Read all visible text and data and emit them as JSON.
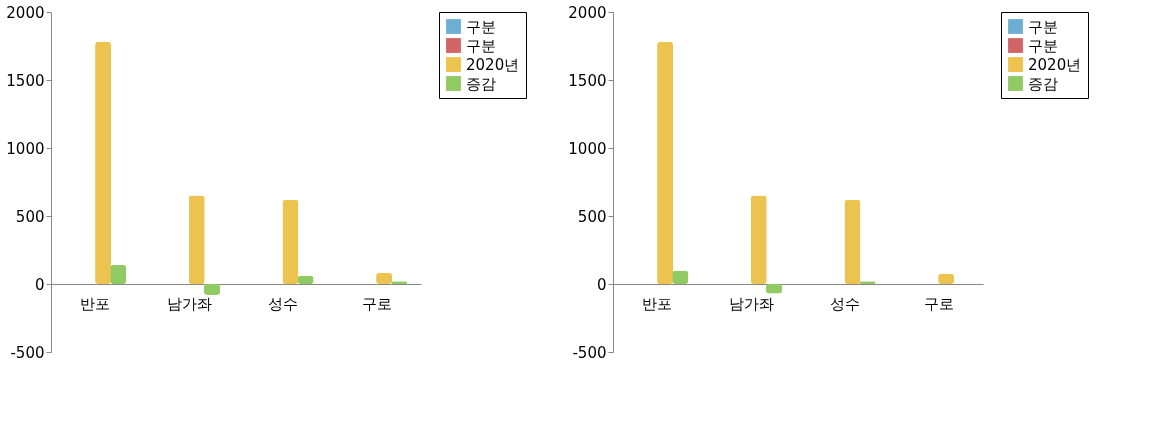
{
  "chart_data": [
    {
      "type": "bar",
      "categories": [
        "반포",
        "남가좌",
        "성수",
        "구로"
      ],
      "ylim": [
        -500,
        2000
      ],
      "yticks": [
        -500,
        0,
        500,
        1000,
        1500,
        2000
      ],
      "grid": false,
      "legend": "right",
      "series": [
        {
          "name": "구분",
          "color": "#6eaed3",
          "values": [
            null,
            null,
            null,
            null
          ]
        },
        {
          "name": "구분",
          "color": "#d16464",
          "values": [
            null,
            null,
            null,
            null
          ]
        },
        {
          "name": "2020년",
          "color": "#ebc34e",
          "values": [
            1780,
            650,
            620,
            80
          ]
        },
        {
          "name": "증감",
          "color": "#8fca63",
          "values": [
            140,
            -80,
            60,
            20
          ]
        }
      ]
    },
    {
      "type": "bar",
      "categories": [
        "반포",
        "남가좌",
        "성수",
        "구로"
      ],
      "ylim": [
        -500,
        2000
      ],
      "yticks": [
        -500,
        0,
        500,
        1000,
        1500,
        2000
      ],
      "grid": false,
      "legend": "right",
      "series": [
        {
          "name": "구분",
          "color": "#6eaed3",
          "values": [
            null,
            null,
            null,
            null
          ]
        },
        {
          "name": "구분",
          "color": "#d16464",
          "values": [
            null,
            null,
            null,
            null
          ]
        },
        {
          "name": "2020년",
          "color": "#ebc34e",
          "values": [
            1780,
            650,
            620,
            75
          ]
        },
        {
          "name": "증감",
          "color": "#8fca63",
          "values": [
            100,
            -70,
            20,
            null
          ]
        }
      ]
    }
  ]
}
